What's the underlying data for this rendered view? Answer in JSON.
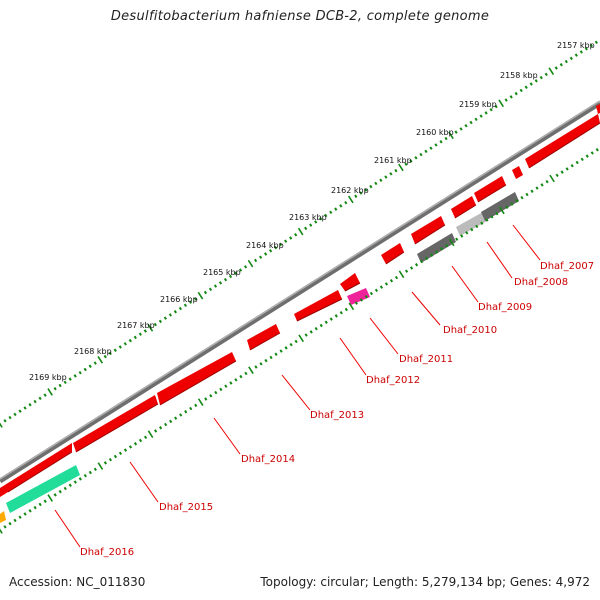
{
  "title": "Desulfitobacterium hafniense DCB-2, complete genome",
  "footer": {
    "accession": "Accession: NC_011830",
    "summary": "Topology: circular; Length: 5,279,134 bp; Genes: 4,972"
  },
  "ticks": [
    {
      "label": "2157 kbp"
    },
    {
      "label": "2158 kbp"
    },
    {
      "label": "2159 kbp"
    },
    {
      "label": "2160 kbp"
    },
    {
      "label": "2161 kbp"
    },
    {
      "label": "2162 kbp"
    },
    {
      "label": "2163 kbp"
    },
    {
      "label": "2164 kbp"
    },
    {
      "label": "2165 kbp"
    },
    {
      "label": "2166 kbp"
    },
    {
      "label": "2167 kbp"
    },
    {
      "label": "2168 kbp"
    },
    {
      "label": "2169 kbp"
    }
  ],
  "gene_labels": [
    "Dhaf_2007",
    "Dhaf_2008",
    "Dhaf_2009",
    "Dhaf_2010",
    "Dhaf_2011",
    "Dhaf_2012",
    "Dhaf_2013",
    "Dhaf_2014",
    "Dhaf_2015",
    "Dhaf_2016"
  ],
  "colors": {
    "gene": "#ee0000",
    "gene_dark": "#b00000",
    "backbone": "#888888",
    "ticks": "#118811",
    "label": "#cc0000",
    "gray_dark": "#666666",
    "gray_light": "#bbbbbb",
    "pink": "#ee2299",
    "teal": "#22dd99",
    "orange": "#ffaa00"
  }
}
